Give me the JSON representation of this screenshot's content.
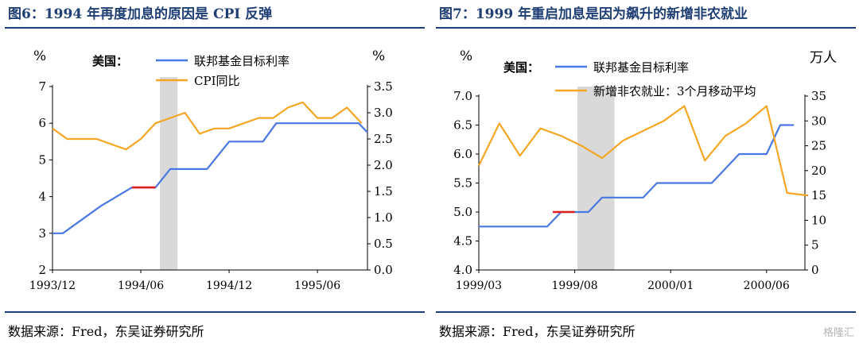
{
  "charts": [
    {
      "title": "图6：1994 年再度加息的原因是 CPI 反弹",
      "source": "数据来源：Fred，东吴证券研究所",
      "chart_data": {
        "type": "line",
        "x_tick_labels": [
          "1993/12",
          "1994/06",
          "1994/12",
          "1995/06"
        ],
        "left_unit": "%",
        "right_unit": "%",
        "left_ylim": [
          2,
          7
        ],
        "right_ylim": [
          0,
          3.5
        ],
        "left_ticks": [
          "2",
          "3",
          "4",
          "5",
          "6",
          "7"
        ],
        "right_ticks": [
          "0.0",
          "0.5",
          "1.0",
          "1.5",
          "2.0",
          "2.5",
          "3.0",
          "3.5"
        ],
        "legend_prefix": "美国：",
        "highlight_range": [
          7.3,
          8.5
        ],
        "red_segment": [
          5.4,
          7.0
        ],
        "series": [
          {
            "name": "联邦基金目标利率",
            "axis": "left",
            "color": "#4a78e2",
            "x": [
              0,
              0.7,
              3.3,
              5.4,
              7.0,
              8.0,
              9.6,
              10.5,
              12.0,
              12.7,
              14.3,
              15.2,
              16.7,
              17.6,
              18.7,
              19.4,
              20.8,
              21.4
            ],
            "values": [
              3.0,
              3.0,
              3.75,
              4.25,
              4.25,
              4.75,
              4.75,
              4.75,
              5.5,
              5.5,
              5.5,
              6.0,
              6.0,
              6.0,
              6.0,
              6.0,
              6.0,
              5.75
            ]
          },
          {
            "name": "CPI同比",
            "axis": "right",
            "color": "#f5a623",
            "x": [
              0,
              1,
              2,
              3,
              4,
              5,
              6,
              7,
              8,
              9,
              10,
              11,
              12,
              13,
              14,
              15,
              16,
              17,
              18,
              19,
              20,
              21
            ],
            "values": [
              2.7,
              2.5,
              2.5,
              2.5,
              2.4,
              2.3,
              2.5,
              2.8,
              2.9,
              3.0,
              2.6,
              2.7,
              2.7,
              2.8,
              2.9,
              2.9,
              3.1,
              3.2,
              2.9,
              2.9,
              3.1,
              2.8
            ]
          }
        ],
        "x_tick_positions": [
          0,
          6,
          12,
          18
        ],
        "x_max": 21.4
      }
    },
    {
      "title": "图7：1999 年重启加息是因为飙升的新增非农就业",
      "source": "数据来源：Fred，东吴证券研究所",
      "chart_data": {
        "type": "line",
        "x_tick_labels": [
          "1999/03",
          "1999/08",
          "2000/01",
          "2000/06"
        ],
        "left_unit": "%",
        "right_unit": "万人",
        "left_ylim": [
          4.0,
          7.0
        ],
        "right_ylim": [
          0,
          35
        ],
        "left_ticks": [
          "4.0",
          "4.5",
          "5.0",
          "5.5",
          "6.0",
          "6.5",
          "7.0"
        ],
        "right_ticks": [
          "0",
          "5",
          "10",
          "15",
          "20",
          "25",
          "30",
          "35"
        ],
        "legend_prefix": "美国：",
        "highlight_range": [
          7.2,
          9.9
        ],
        "red_segment": [
          5.4,
          7.0
        ],
        "series": [
          {
            "name": "联邦基金目标利率",
            "axis": "left",
            "color": "#4a78e2",
            "x": [
              0,
              1,
              2,
              3,
              4,
              5,
              6,
              7,
              8,
              9,
              10,
              11,
              12,
              13,
              14,
              15,
              16,
              17,
              18,
              19,
              20,
              21,
              22,
              23
            ],
            "values": [
              4.75,
              4.75,
              4.75,
              4.75,
              4.75,
              4.75,
              5.0,
              5.0,
              5.0,
              5.25,
              5.25,
              5.25,
              5.25,
              5.5,
              5.5,
              5.5,
              5.5,
              5.5,
              5.75,
              6.0,
              6.0,
              6.0,
              6.5,
              6.5
            ]
          },
          {
            "name": "新增非农就业：3个月移动平均",
            "axis": "right",
            "color": "#f5a623",
            "x": [
              0,
              1.5,
              3,
              4.5,
              6,
              7.5,
              9,
              10.5,
              12,
              13.5,
              15,
              16.5,
              18,
              19.5,
              21,
              22.5,
              24
            ],
            "values": [
              21,
              29.5,
              23,
              28.5,
              27,
              25,
              22.5,
              26,
              28,
              30,
              33,
              22,
              27,
              29.5,
              33,
              15.5,
              15
            ]
          }
        ],
        "x_tick_positions": [
          0,
          7,
          14,
          21
        ],
        "x_max": 23.8
      }
    }
  ],
  "watermark": "格隆汇"
}
